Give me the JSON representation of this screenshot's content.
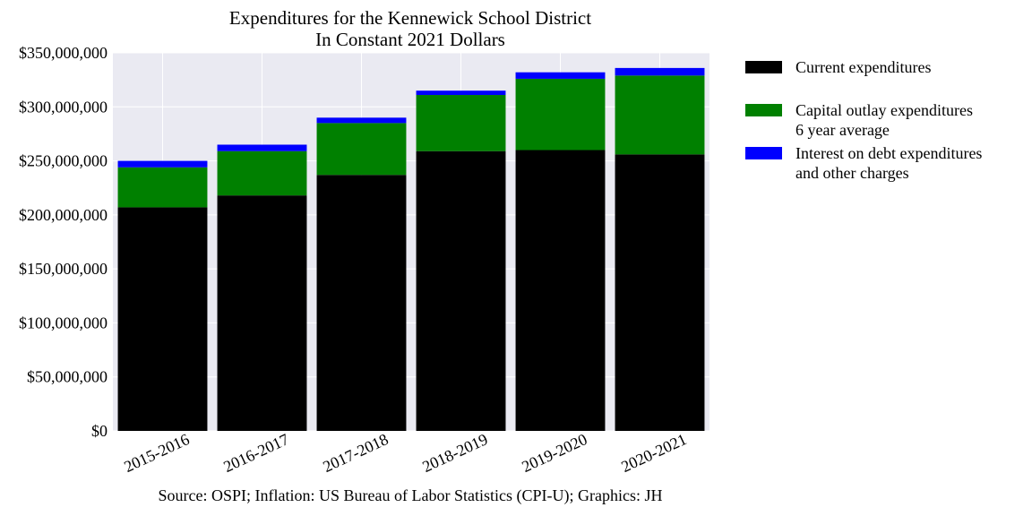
{
  "chart_data": {
    "type": "bar",
    "stacked": true,
    "title": "Expenditures for the Kennewick School District",
    "subtitle": "In Constant 2021 Dollars",
    "xlabel": "",
    "ylabel": "",
    "categories": [
      "2015-2016",
      "2016-2017",
      "2017-2018",
      "2018-2019",
      "2019-2020",
      "2020-2021"
    ],
    "series": [
      {
        "name": "Current expenditures",
        "color": "#000000",
        "values": [
          207000000,
          218000000,
          237000000,
          259000000,
          260000000,
          256000000
        ]
      },
      {
        "name": "Capital outlay expenditures\n6 year average",
        "color": "#008000",
        "values": [
          37000000,
          41000000,
          48000000,
          52000000,
          66000000,
          73000000
        ]
      },
      {
        "name": "Interest on debt expenditures\nand other charges",
        "color": "#0000ff",
        "values": [
          6000000,
          6000000,
          5000000,
          4000000,
          6000000,
          7000000
        ]
      }
    ],
    "ylim": [
      0,
      350000000
    ],
    "yticks": [
      0,
      50000000,
      100000000,
      150000000,
      200000000,
      250000000,
      300000000,
      350000000
    ],
    "ytick_labels": [
      "$0",
      "$50,000,000",
      "$100,000,000",
      "$150,000,000",
      "$200,000,000",
      "$250,000,000",
      "$300,000,000",
      "$350,000,000"
    ],
    "grid": true,
    "legend_position": "outside-right-top",
    "background_color": "#eaeaf2"
  },
  "source_note": "Source: OSPI; Inflation: US Bureau of Labor Statistics (CPI-U); Graphics: JH"
}
